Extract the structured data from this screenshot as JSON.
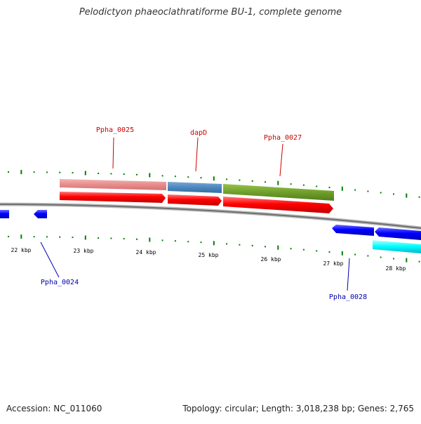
{
  "title": "Pelodictyon phaeoclathratiforme BU-1, complete genome",
  "footer": {
    "accession": "Accession: NC_011060",
    "summary": "Topology: circular; Length: 3,018,238 bp; Genes: 2,765"
  },
  "colors": {
    "backbone": "#7a7a7a",
    "forward_cds": "#ff0000",
    "reverse_cds": "#0000ff",
    "reverse_other": "#00ffff",
    "tick": "#008000",
    "top_gene_label": "#cc0000",
    "bottom_gene_label": "#0000aa",
    "gene_pink": "#e88c8c",
    "gene_steelblue": "#4b87bd",
    "gene_olive": "#6f9f2a"
  },
  "scale_labels": [
    "22 kbp",
    "23 kbp",
    "24 kbp",
    "25 kbp",
    "26 kbp",
    "27 kbp",
    "28 kbp"
  ],
  "gene_labels_top": [
    "Ppha_0025",
    "dapD",
    "Ppha_0027"
  ],
  "gene_labels_bottom": [
    "Ppha_0024",
    "Ppha_0028"
  ]
}
